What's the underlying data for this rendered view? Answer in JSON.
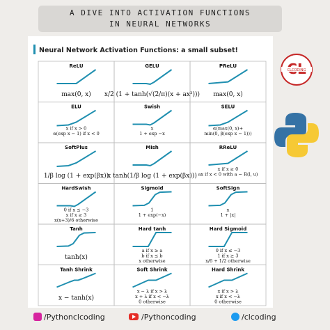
{
  "header": {
    "title_lines": [
      "A DIVE INTO ACTIVATION FUNCTIONS",
      "IN NEURAL NETWORKS"
    ],
    "subtitle": "Neural Network Activation Functions: a small subset!"
  },
  "logo": {
    "text": "CL",
    "caption": "CLCODING"
  },
  "cells": [
    {
      "name": "ReLU",
      "formula": [
        "max(0, x)"
      ]
    },
    {
      "name": "GELU",
      "formula": [
        "x/2 (1 + tanh(√(2/π)(x + ax³)))"
      ]
    },
    {
      "name": "PReLU",
      "formula": [
        "max(0, x)"
      ]
    },
    {
      "name": "ELU",
      "formula": [
        "x if x > 0",
        "α(exp x − 1) if x < 0"
      ]
    },
    {
      "name": "Swish",
      "formula": [
        "x",
        "1 + exp −x"
      ]
    },
    {
      "name": "SELU",
      "formula": [
        "α(max(0, x)+",
        "min(0, β(exp x − 1)))"
      ]
    },
    {
      "name": "SoftPlus",
      "formula": [
        "1/β log (1 + exp(βx))"
      ]
    },
    {
      "name": "Mish",
      "formula": [
        "x tanh(1/β log (1 + exp(βx)))"
      ]
    },
    {
      "name": "RReLU",
      "formula": [
        "x if x ≥ 0",
        "ax if x < 0 with a ~ R(l, u)"
      ]
    },
    {
      "name": "HardSwish",
      "formula": [
        "0 if x ≤ −3",
        "x if x ≥ 3",
        "x(x+3)/6 otherwise"
      ]
    },
    {
      "name": "Sigmoid",
      "formula": [
        "1",
        "1 + exp(−x)"
      ]
    },
    {
      "name": "SoftSign",
      "formula": [
        "x",
        "1 + |x|"
      ]
    },
    {
      "name": "Tanh",
      "formula": [
        "tanh(x)"
      ]
    },
    {
      "name": "Hard tanh",
      "formula": [
        "a if x ≥ a",
        "b if x ≤ b",
        "x otherwise"
      ]
    },
    {
      "name": "Hard Sigmoid",
      "formula": [
        "0 if x ≤ −3",
        "1 if x ≥ 3",
        "x/6 + 1/2 otherwise"
      ]
    },
    {
      "name": "Tanh Shrink",
      "formula": [
        "x − tanh(x)"
      ]
    },
    {
      "name": "Soft Shrink",
      "formula": [
        "x − λ if x > λ",
        "x + λ if x < −λ",
        "0 otherwise"
      ]
    },
    {
      "name": "Hard Shrink",
      "formula": [
        "x if x > λ",
        "x if x < −λ",
        "0 otherwise"
      ]
    }
  ],
  "footer": [
    "/Pythonclcoding",
    "/Pythoncoding",
    "/clcoding"
  ]
}
